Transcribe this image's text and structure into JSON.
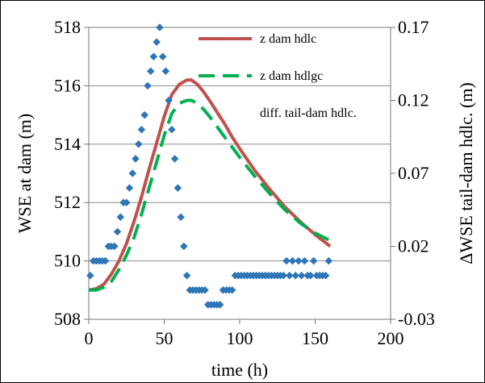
{
  "chart_data": {
    "type": "line",
    "title": "",
    "xlabel": "time (h)",
    "ylabel_left": "WSE at dam (m)",
    "ylabel_right": "ΔWSE tail-dam hdlc. (m)",
    "xlim": [
      0,
      200
    ],
    "ylim_left": [
      508,
      518
    ],
    "ylim_right": [
      -0.03,
      0.17
    ],
    "x_ticks": [
      "0",
      "50",
      "100",
      "150",
      "200"
    ],
    "y_left_ticks": [
      "508",
      "510",
      "512",
      "514",
      "516",
      "518"
    ],
    "y_right_ticks": [
      "-0.03",
      "0.02",
      "0.07",
      "0.12",
      "0.17"
    ],
    "grid": "horizontal",
    "legend_position": "top-right",
    "series": [
      {
        "name": "z dam hdlc",
        "axis": "left",
        "style": "solid",
        "color": "#c0504d",
        "x": [
          0,
          5,
          10,
          15,
          20,
          25,
          30,
          35,
          40,
          45,
          50,
          55,
          60,
          65,
          68,
          72,
          76,
          80,
          85,
          90,
          95,
          100,
          110,
          120,
          130,
          140,
          150,
          160
        ],
        "y": [
          509.0,
          509.05,
          509.2,
          509.55,
          510.0,
          510.6,
          511.35,
          512.2,
          513.15,
          514.05,
          514.95,
          515.7,
          516.05,
          516.2,
          516.2,
          516.05,
          515.8,
          515.5,
          515.1,
          514.7,
          514.25,
          513.85,
          513.1,
          512.45,
          511.85,
          511.35,
          510.9,
          510.5
        ]
      },
      {
        "name": "z dam hdlgc",
        "axis": "left",
        "style": "dashed",
        "color": "#00b050",
        "x": [
          0,
          5,
          10,
          15,
          20,
          25,
          30,
          35,
          40,
          45,
          50,
          55,
          60,
          65,
          68,
          72,
          76,
          80,
          85,
          90,
          95,
          100,
          110,
          120,
          130,
          140,
          150,
          160
        ],
        "y": [
          509.0,
          509.0,
          509.1,
          509.3,
          509.7,
          510.2,
          510.8,
          511.6,
          512.5,
          513.4,
          514.3,
          515.05,
          515.4,
          515.5,
          515.5,
          515.4,
          515.2,
          514.95,
          514.6,
          514.25,
          513.9,
          513.55,
          512.9,
          512.3,
          511.75,
          511.3,
          510.95,
          510.7
        ]
      },
      {
        "name": "diff. tail-dam hdlc.",
        "axis": "right",
        "style": "markers",
        "color": "#2e75b6",
        "x": [
          1,
          3,
          5,
          7,
          9,
          11,
          13,
          15,
          17,
          19,
          21,
          23,
          25,
          27,
          29,
          31,
          33,
          35,
          37,
          39,
          41,
          43,
          45,
          47,
          49,
          51,
          53,
          55,
          57,
          59,
          61,
          63,
          65,
          67,
          69,
          71,
          73,
          75,
          77,
          79,
          81,
          83,
          85,
          87,
          89,
          91,
          93,
          95,
          97,
          99,
          101,
          103,
          105,
          107,
          109,
          111,
          113,
          115,
          117,
          119,
          121,
          123,
          125,
          127,
          129,
          131,
          133,
          135,
          137,
          139,
          141,
          143,
          145,
          147,
          149,
          151,
          153,
          155,
          157,
          159
        ],
        "y": [
          0.0,
          0.01,
          0.01,
          0.01,
          0.01,
          0.01,
          0.02,
          0.02,
          0.02,
          0.03,
          0.04,
          0.05,
          0.05,
          0.06,
          0.07,
          0.08,
          0.09,
          0.1,
          0.11,
          0.13,
          0.14,
          0.15,
          0.16,
          0.17,
          0.15,
          0.14,
          0.12,
          0.1,
          0.08,
          0.06,
          0.04,
          0.02,
          0.0,
          -0.01,
          -0.01,
          -0.01,
          -0.01,
          -0.01,
          -0.01,
          -0.02,
          -0.02,
          -0.02,
          -0.02,
          -0.02,
          -0.01,
          -0.01,
          -0.01,
          -0.01,
          0.0,
          0.0,
          0.0,
          0.0,
          0.0,
          0.0,
          0.0,
          0.0,
          0.0,
          0.0,
          0.0,
          0.0,
          0.0,
          0.0,
          0.0,
          0.0,
          0.0,
          0.01,
          0.0,
          0.01,
          0.0,
          0.01,
          0.0,
          0.01,
          0.0,
          0.0,
          0.01,
          0.0,
          0.0,
          0.0,
          0.0,
          0.01
        ]
      }
    ]
  }
}
